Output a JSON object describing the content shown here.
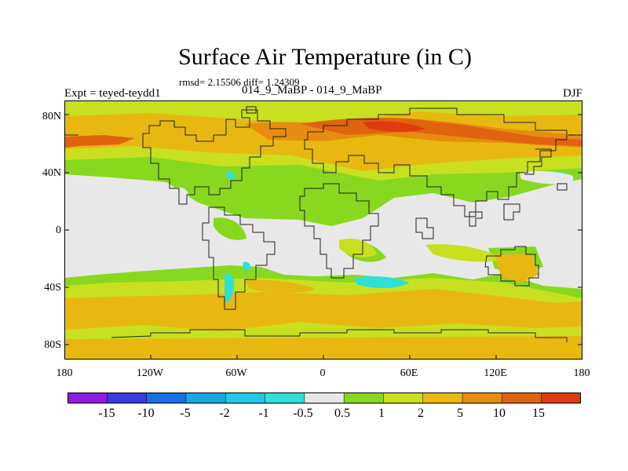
{
  "title": "Surface Air Temperature (in C)",
  "stats": "rmsd= 2.15506 diff= 1.24309",
  "experiment": "Expt = teyed-teydd1",
  "runs": "014_9_MaBP - 014_9_MaBP",
  "season": "DJF",
  "y_axis_labels": [
    "80N",
    "40N",
    "0",
    "40S",
    "80S"
  ],
  "x_axis_labels": [
    "180",
    "120W",
    "60W",
    "0",
    "60E",
    "120E",
    "180"
  ],
  "colorbar": {
    "labels": [
      "-15",
      "-10",
      "-5",
      "-2",
      "-1",
      "-0.5",
      "0.5",
      "1",
      "2",
      "5",
      "10",
      "15"
    ],
    "colors": [
      "#8a1ee0",
      "#3a3ae0",
      "#1a6ee6",
      "#1aa6e6",
      "#22c8e6",
      "#2ee0d6",
      "#e8e8e8",
      "#88d820",
      "#c8e020",
      "#e8b810",
      "#e88c10",
      "#e06410",
      "#e03a10"
    ]
  }
}
